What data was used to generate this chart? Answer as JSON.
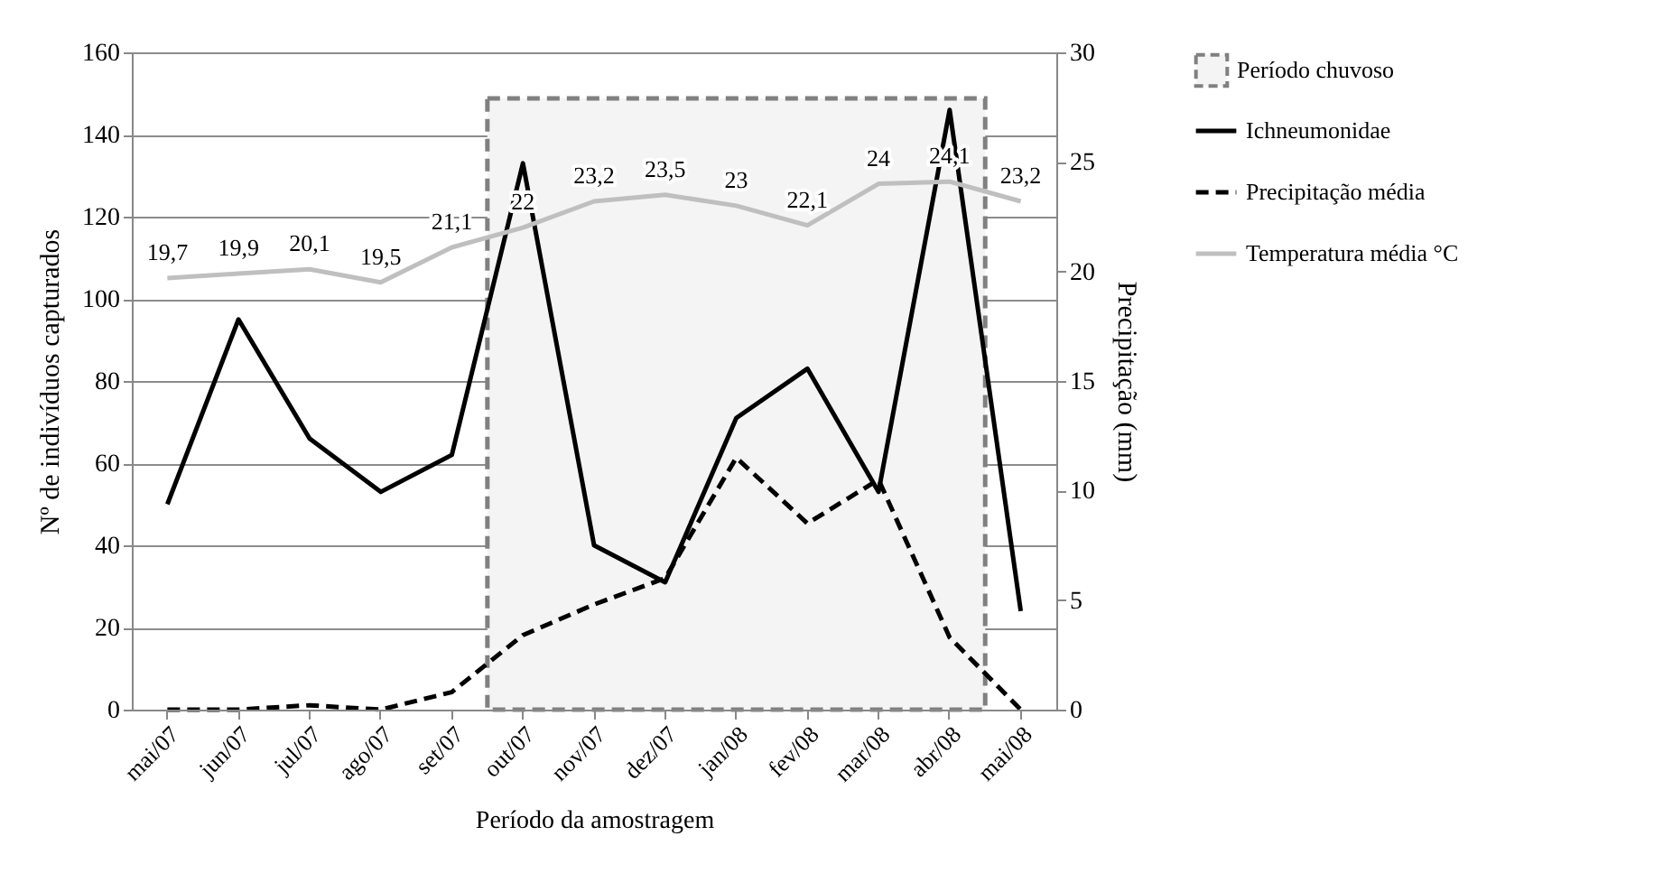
{
  "chart_data": {
    "type": "line",
    "xlabel": "Período da amostragem",
    "ylabel": "Nº de indivíduos capturados",
    "y2label": "Precipitação (mm)",
    "categories": [
      "mai/07",
      "jun/07",
      "jul/07",
      "ago/07",
      "set/07",
      "out/07",
      "nov/07",
      "dez/07",
      "jan/08",
      "fev/08",
      "mar/08",
      "abr/08",
      "mai/08"
    ],
    "series": [
      {
        "name": "Ichneumonidae",
        "color": "#000000",
        "line_style": "solid",
        "values": [
          50,
          95,
          66,
          53,
          62,
          133,
          40,
          31,
          71,
          83,
          53,
          146,
          24
        ]
      },
      {
        "name": "Precipitação média",
        "color": "#000000",
        "line_style": "dashed",
        "axis": "y2",
        "values": [
          0,
          0,
          0.2,
          0,
          0.8,
          3.4,
          4.8,
          6,
          11.5,
          8.5,
          10.5,
          3.3,
          0
        ]
      },
      {
        "name": "Temperatura média °C",
        "color": "#bfbfbf",
        "line_style": "solid",
        "axis": "y2",
        "values": [
          19.7,
          19.9,
          20.1,
          19.5,
          21.1,
          22,
          23.2,
          23.5,
          23,
          22.1,
          24,
          24.1,
          23.2
        ],
        "value_labels": [
          "19,7",
          "19,9",
          "20,1",
          "19,5",
          "21,1",
          "22",
          "23,2",
          "23,5",
          "23",
          "22,1",
          "24",
          "24,1",
          "23,2"
        ]
      }
    ],
    "bands": [
      {
        "axis": "x",
        "from": "out/07",
        "to": "abr/08",
        "label": "Período chuvoso",
        "color": "#f4f4f4"
      }
    ],
    "ylim": [
      0,
      160
    ],
    "yticks": [
      0,
      20,
      40,
      60,
      80,
      100,
      120,
      140,
      160
    ],
    "y2lim": [
      0,
      30
    ],
    "y2ticks": [
      0,
      5,
      10,
      15,
      20,
      25,
      30
    ],
    "grid": "y",
    "legend": "right",
    "marker": "none"
  }
}
